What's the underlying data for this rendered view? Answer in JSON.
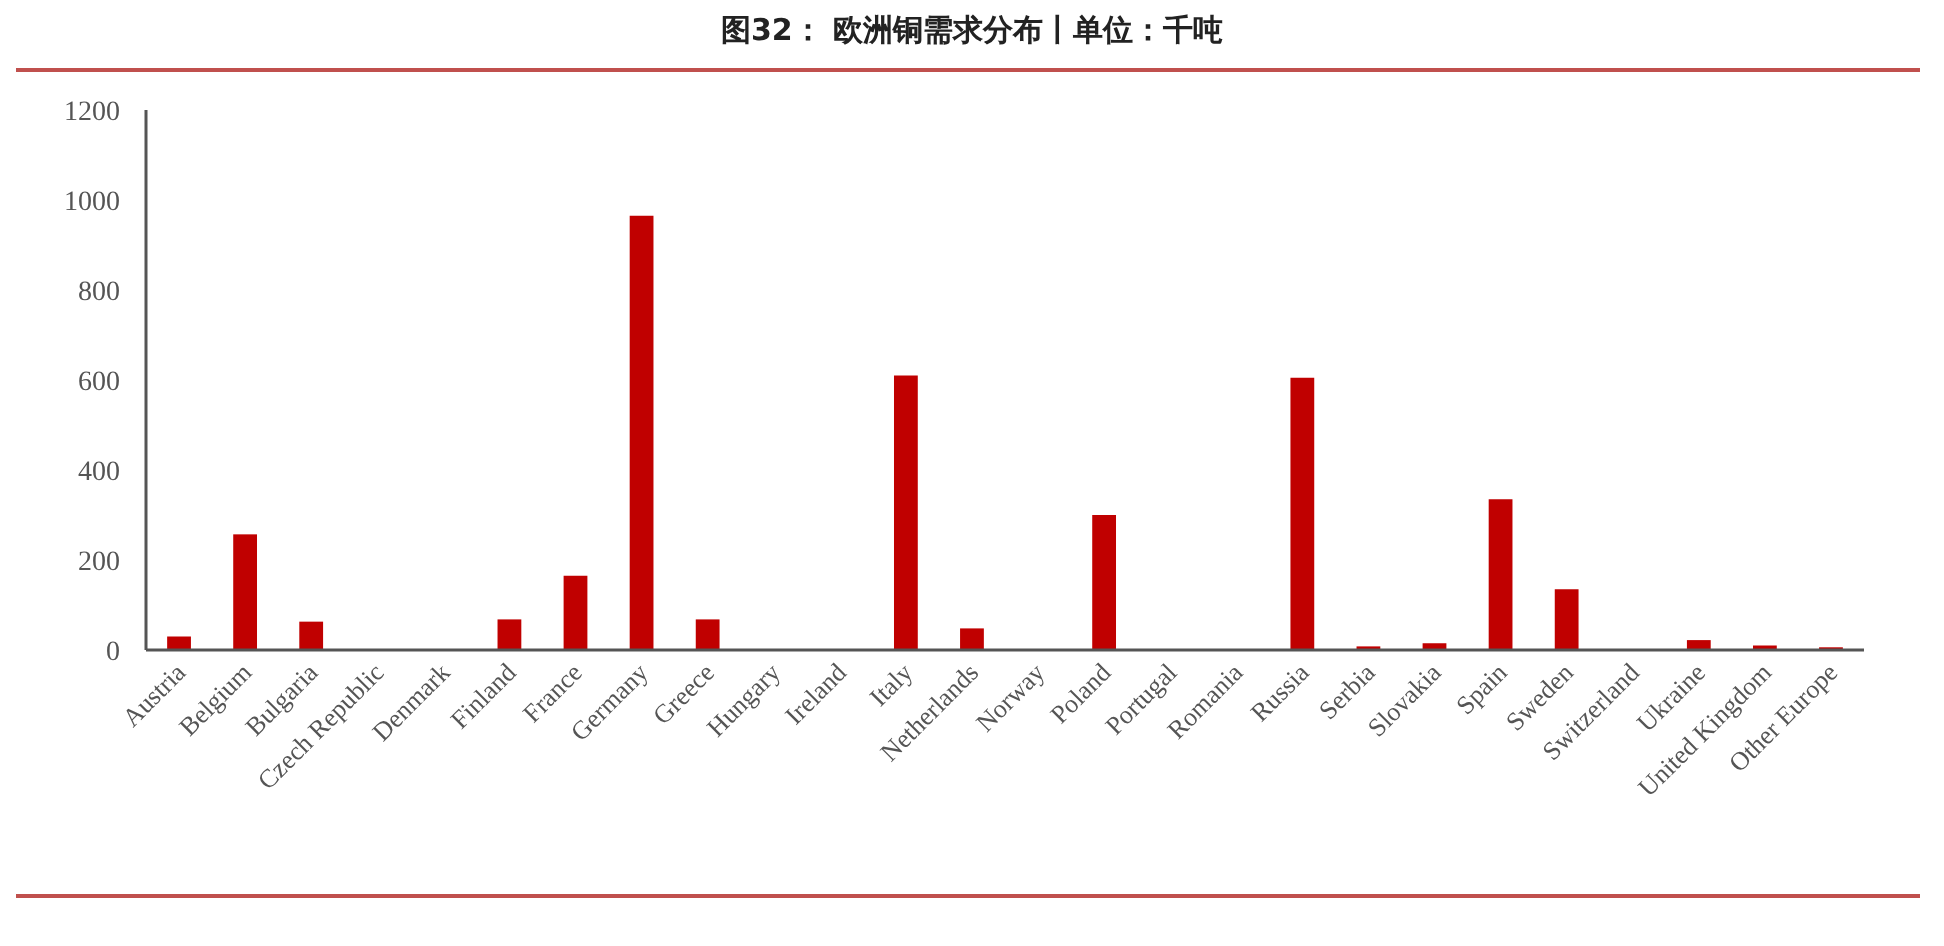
{
  "chart_data": {
    "type": "bar",
    "title": "图32：  欧洲铜需求分布丨单位：千吨",
    "categories": [
      "Austria",
      "Belgium",
      "Bulgaria",
      "Czech Republic",
      "Denmark",
      "Finland",
      "France",
      "Germany",
      "Greece",
      "Hungary",
      "Ireland",
      "Italy",
      "Netherlands",
      "Norway",
      "Poland",
      "Portugal",
      "Romania",
      "Russia",
      "Serbia",
      "Slovakia",
      "Spain",
      "Sweden",
      "Switzerland",
      "Ukraine",
      "United Kingdom",
      "Other Europe"
    ],
    "values": [
      30,
      257,
      63,
      2,
      2,
      68,
      165,
      965,
      68,
      2,
      2,
      610,
      48,
      2,
      300,
      2,
      2,
      605,
      8,
      15,
      335,
      135,
      2,
      22,
      10,
      6
    ],
    "color": "#c00000",
    "ylim": [
      0,
      1200
    ],
    "yticks": [
      0,
      200,
      400,
      600,
      800,
      1000,
      1200
    ],
    "grid": false
  }
}
